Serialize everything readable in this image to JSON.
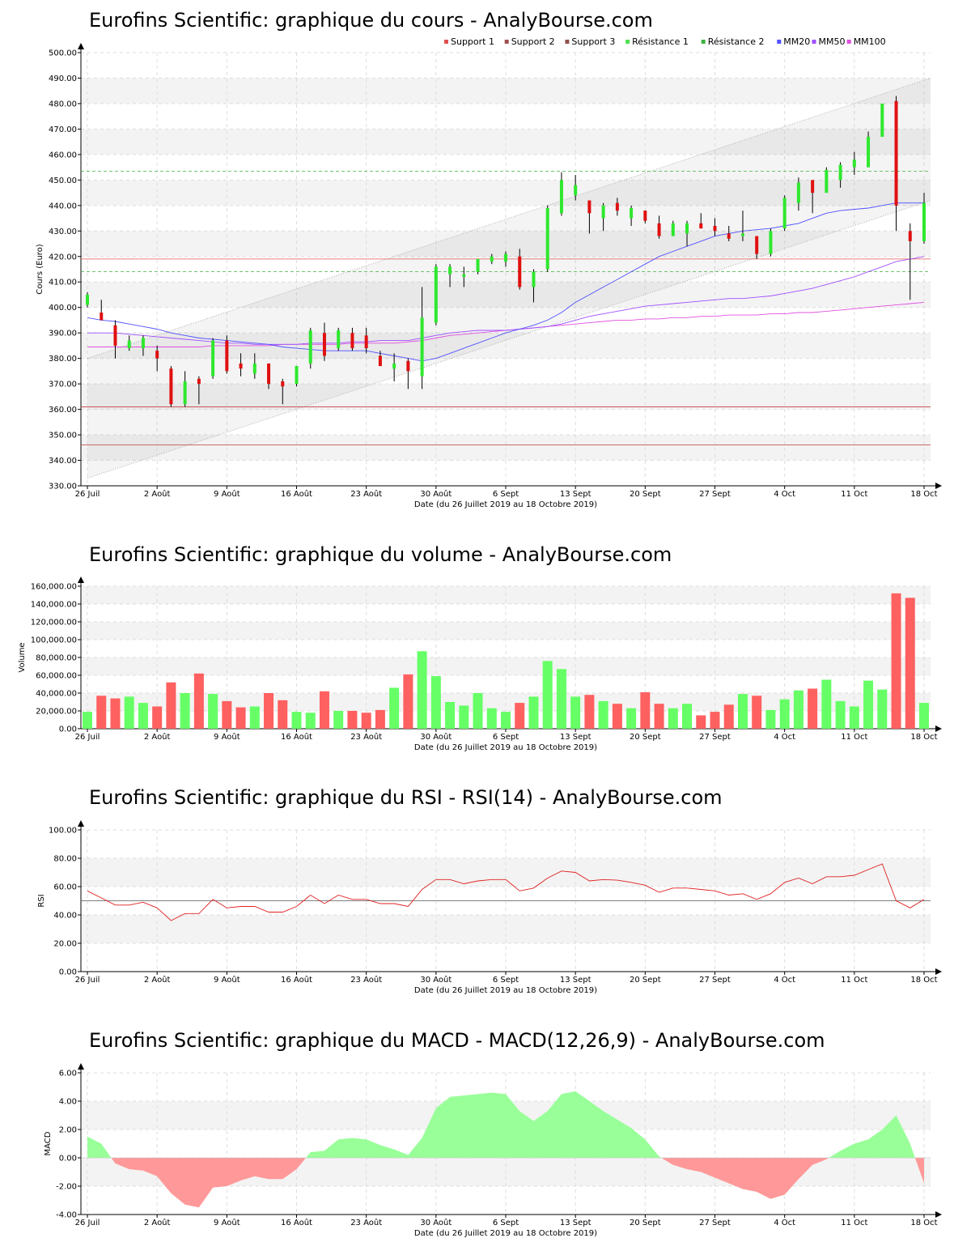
{
  "chart_data": [
    {
      "id": "price",
      "type": "candlestick",
      "title": "Eurofins Scientific: graphique du cours - AnalyBourse.com",
      "xlabel": "Date (du 26 Juillet 2019 au 18 Octobre 2019)",
      "ylabel": "Cours (Euro)",
      "ylim": [
        330,
        500
      ],
      "yticks": [
        "330.00",
        "340.00",
        "350.00",
        "360.00",
        "370.00",
        "380.00",
        "390.00",
        "400.00",
        "410.00",
        "420.00",
        "430.00",
        "440.00",
        "450.00",
        "460.00",
        "470.00",
        "480.00",
        "490.00",
        "500.00"
      ],
      "xtick_labels": [
        "26 Juil",
        "2 Août",
        "9 Août",
        "16 Août",
        "23 Août",
        "30 Août",
        "6 Sept",
        "13 Sept",
        "20 Sept",
        "27 Sept",
        "4 Oct",
        "11 Oct",
        "18 Oct"
      ],
      "xtick_index": [
        0,
        5,
        10,
        15,
        20,
        25,
        30,
        35,
        40,
        45,
        50,
        55,
        60
      ],
      "legend": [
        {
          "name": "Support 1",
          "color": "#e05050"
        },
        {
          "name": "Support 2",
          "color": "#a05050"
        },
        {
          "name": "Support 3",
          "color": "#905050"
        },
        {
          "name": "Résistance 1",
          "color": "#50e050"
        },
        {
          "name": "Résistance 2",
          "color": "#40b040"
        },
        {
          "name": "MM20",
          "color": "#5050ff"
        },
        {
          "name": "MM50",
          "color": "#a050ff"
        },
        {
          "name": "MM100",
          "color": "#e050e0"
        }
      ],
      "levels": {
        "support": [
          419,
          361,
          346
        ],
        "resistance": [
          453.5,
          414
        ]
      },
      "channel": {
        "upper": [
          380,
          490
        ],
        "lower": [
          333,
          442
        ]
      },
      "candles": [
        {
          "o": 401,
          "h": 406,
          "l": 400,
          "c": 405
        },
        {
          "o": 398,
          "h": 403,
          "l": 395,
          "c": 395
        },
        {
          "o": 393,
          "h": 395,
          "l": 380,
          "c": 385
        },
        {
          "o": 384,
          "h": 389,
          "l": 383,
          "c": 387
        },
        {
          "o": 384,
          "h": 389,
          "l": 381,
          "c": 388
        },
        {
          "o": 383,
          "h": 385,
          "l": 375,
          "c": 380
        },
        {
          "o": 376,
          "h": 377,
          "l": 361,
          "c": 362
        },
        {
          "o": 362,
          "h": 375,
          "l": 361,
          "c": 371
        },
        {
          "o": 372,
          "h": 373,
          "l": 362,
          "c": 370
        },
        {
          "o": 373,
          "h": 388,
          "l": 372,
          "c": 387
        },
        {
          "o": 387,
          "h": 389,
          "l": 374,
          "c": 375
        },
        {
          "o": 378,
          "h": 382,
          "l": 373,
          "c": 376
        },
        {
          "o": 374,
          "h": 382,
          "l": 372,
          "c": 378
        },
        {
          "o": 378,
          "h": 378,
          "l": 368,
          "c": 370
        },
        {
          "o": 371,
          "h": 372,
          "l": 362,
          "c": 369
        },
        {
          "o": 370,
          "h": 377,
          "l": 369,
          "c": 377
        },
        {
          "o": 378,
          "h": 392,
          "l": 376,
          "c": 391
        },
        {
          "o": 390,
          "h": 394,
          "l": 379,
          "c": 381
        },
        {
          "o": 384,
          "h": 392,
          "l": 383,
          "c": 391
        },
        {
          "o": 390,
          "h": 392,
          "l": 383,
          "c": 384
        },
        {
          "o": 389,
          "h": 392,
          "l": 382,
          "c": 384
        },
        {
          "o": 381,
          "h": 383,
          "l": 377,
          "c": 377
        },
        {
          "o": 376,
          "h": 382,
          "l": 371,
          "c": 378
        },
        {
          "o": 379,
          "h": 380,
          "l": 368,
          "c": 375
        },
        {
          "o": 373,
          "h": 408,
          "l": 368,
          "c": 396
        },
        {
          "o": 394,
          "h": 417,
          "l": 393,
          "c": 416
        },
        {
          "o": 413,
          "h": 417,
          "l": 408,
          "c": 416
        },
        {
          "o": 412,
          "h": 416,
          "l": 408,
          "c": 413
        },
        {
          "o": 414,
          "h": 419,
          "l": 413,
          "c": 419
        },
        {
          "o": 418,
          "h": 421,
          "l": 417,
          "c": 420
        },
        {
          "o": 418,
          "h": 422,
          "l": 416,
          "c": 421
        },
        {
          "o": 420,
          "h": 423,
          "l": 407,
          "c": 408
        },
        {
          "o": 408,
          "h": 415,
          "l": 402,
          "c": 414
        },
        {
          "o": 415,
          "h": 440,
          "l": 414,
          "c": 439
        },
        {
          "o": 437,
          "h": 453,
          "l": 436,
          "c": 450
        },
        {
          "o": 444,
          "h": 452,
          "l": 442,
          "c": 448
        },
        {
          "o": 442,
          "h": 442,
          "l": 429,
          "c": 437
        },
        {
          "o": 435,
          "h": 441,
          "l": 430,
          "c": 440
        },
        {
          "o": 441,
          "h": 443,
          "l": 436,
          "c": 438
        },
        {
          "o": 435,
          "h": 440,
          "l": 432,
          "c": 439
        },
        {
          "o": 438,
          "h": 438,
          "l": 433,
          "c": 434
        },
        {
          "o": 433,
          "h": 436,
          "l": 427,
          "c": 428
        },
        {
          "o": 428,
          "h": 434,
          "l": 428,
          "c": 433
        },
        {
          "o": 429,
          "h": 434,
          "l": 424,
          "c": 433
        },
        {
          "o": 433,
          "h": 437,
          "l": 431,
          "c": 431
        },
        {
          "o": 432,
          "h": 435,
          "l": 428,
          "c": 430
        },
        {
          "o": 429,
          "h": 432,
          "l": 426,
          "c": 427
        },
        {
          "o": 428,
          "h": 438,
          "l": 426,
          "c": 429
        },
        {
          "o": 428,
          "h": 428,
          "l": 419,
          "c": 421
        },
        {
          "o": 421,
          "h": 431,
          "l": 420,
          "c": 430
        },
        {
          "o": 431,
          "h": 444,
          "l": 430,
          "c": 443
        },
        {
          "o": 441,
          "h": 451,
          "l": 438,
          "c": 449
        },
        {
          "o": 450,
          "h": 450,
          "l": 437,
          "c": 445
        },
        {
          "o": 445,
          "h": 455,
          "l": 445,
          "c": 454
        },
        {
          "o": 450,
          "h": 457,
          "l": 447,
          "c": 456
        },
        {
          "o": 455,
          "h": 461,
          "l": 452,
          "c": 458
        },
        {
          "o": 455,
          "h": 469,
          "l": 455,
          "c": 467
        },
        {
          "o": 467,
          "h": 480,
          "l": 467,
          "c": 480
        },
        {
          "o": 481,
          "h": 483,
          "l": 430,
          "c": 440
        },
        {
          "o": 430,
          "h": 433,
          "l": 403,
          "c": 426
        },
        {
          "o": 426,
          "h": 445,
          "l": 425,
          "c": 441
        }
      ],
      "mm20": [
        396,
        395,
        394.5,
        393.5,
        392.5,
        391.5,
        390,
        389,
        388,
        387.5,
        387,
        386.5,
        386,
        385.5,
        384.5,
        384,
        383.5,
        383,
        383,
        383,
        383,
        382,
        381,
        380,
        379,
        380,
        382,
        384,
        386,
        388,
        390,
        391.5,
        393,
        395,
        398,
        402,
        405,
        408,
        411,
        414,
        417,
        420,
        422,
        424,
        426,
        428,
        429,
        430,
        430.5,
        431,
        432,
        433,
        435,
        437,
        438,
        438.5,
        439,
        440,
        441,
        441,
        441
      ],
      "mm50": [
        390,
        390,
        390,
        389.5,
        389,
        388.5,
        388,
        387.5,
        387,
        386.5,
        386,
        386,
        385.5,
        385.5,
        385.5,
        385.5,
        386,
        386,
        386,
        386.5,
        386.5,
        387,
        387,
        387,
        388,
        389,
        390,
        390.5,
        391,
        391,
        391,
        391.5,
        392,
        392.5,
        393.5,
        395,
        396.5,
        397.5,
        398.5,
        399.5,
        400.5,
        401,
        401.5,
        402,
        402.5,
        403,
        403.5,
        403.5,
        404,
        404.5,
        405.5,
        406.5,
        407.5,
        409,
        410.5,
        412,
        414,
        416,
        418,
        419,
        420
      ],
      "mm100": [
        384.5,
        384.5,
        384.5,
        384.5,
        384.5,
        384.5,
        384.5,
        384.5,
        384.5,
        385,
        385,
        385,
        385,
        385,
        385.5,
        385.5,
        385.5,
        385.5,
        385.5,
        386,
        386,
        386,
        386,
        386.5,
        387,
        388,
        389,
        389.5,
        390,
        390.5,
        391,
        391.5,
        392,
        392.5,
        393,
        393.5,
        394,
        394.5,
        395,
        395,
        395.5,
        395.5,
        396,
        396,
        396.5,
        396.5,
        397,
        397,
        397,
        397.5,
        397.5,
        398,
        398,
        398.5,
        399,
        399.5,
        400,
        400.5,
        401,
        401.5,
        402
      ]
    },
    {
      "id": "volume",
      "type": "bar",
      "title": "Eurofins Scientific: graphique du volume - AnalyBourse.com",
      "xlabel": "Date (du 26 Juillet 2019 au 18 Octobre 2019)",
      "ylabel": "Volume",
      "ylim": [
        0,
        160000
      ],
      "yticks": [
        "0.00",
        "20,000.00",
        "40,000.00",
        "60,000.00",
        "80,000.00",
        "100,000.00",
        "120,000.00",
        "140,000.00",
        "160,000.00"
      ],
      "xtick_labels": [
        "26 Juil",
        "2 Août",
        "9 Août",
        "16 Août",
        "23 Août",
        "30 Août",
        "6 Sept",
        "13 Sept",
        "20 Sept",
        "27 Sept",
        "4 Oct",
        "11 Oct",
        "18 Oct"
      ],
      "xtick_index": [
        0,
        5,
        10,
        15,
        20,
        25,
        30,
        35,
        40,
        45,
        50,
        55,
        60
      ],
      "values": [
        19000,
        37000,
        34000,
        36000,
        29000,
        25000,
        52000,
        40000,
        62000,
        39000,
        31000,
        24000,
        25000,
        40000,
        32000,
        19000,
        18000,
        42000,
        20000,
        20000,
        18000,
        21000,
        46000,
        61000,
        87000,
        59000,
        30000,
        26000,
        40000,
        23000,
        19000,
        29000,
        36000,
        76000,
        67000,
        36000,
        38000,
        31000,
        28000,
        23000,
        41000,
        28000,
        23000,
        28000,
        15000,
        19000,
        27000,
        39000,
        37000,
        21000,
        33000,
        43000,
        45000,
        55000,
        31000,
        25000,
        54000,
        44000,
        152000,
        147000,
        29000
      ],
      "up": [
        1,
        0,
        0,
        1,
        1,
        0,
        0,
        1,
        0,
        1,
        0,
        0,
        1,
        0,
        0,
        1,
        1,
        0,
        1,
        0,
        0,
        0,
        1,
        0,
        1,
        1,
        1,
        1,
        1,
        1,
        1,
        0,
        1,
        1,
        1,
        1,
        0,
        1,
        0,
        1,
        0,
        0,
        1,
        1,
        0,
        0,
        0,
        1,
        0,
        1,
        1,
        1,
        0,
        1,
        1,
        1,
        1,
        1,
        0,
        0,
        1
      ]
    },
    {
      "id": "rsi",
      "type": "line",
      "title": "Eurofins Scientific: graphique du RSI - RSI(14) - AnalyBourse.com",
      "xlabel": "Date (du 26 Juillet 2019 au 18 Octobre 2019)",
      "ylabel": "RSI",
      "ylim": [
        0,
        100
      ],
      "yticks": [
        "0.00",
        "20.00",
        "40.00",
        "60.00",
        "80.00",
        "100.00"
      ],
      "xtick_labels": [
        "26 Juil",
        "2 Août",
        "9 Août",
        "16 Août",
        "23 Août",
        "30 Août",
        "6 Sept",
        "13 Sept",
        "20 Sept",
        "27 Sept",
        "4 Oct",
        "11 Oct",
        "18 Oct"
      ],
      "xtick_index": [
        0,
        5,
        10,
        15,
        20,
        25,
        30,
        35,
        40,
        45,
        50,
        55,
        60
      ],
      "reference": 50,
      "values": [
        57,
        52,
        47,
        47,
        49,
        45,
        36,
        41,
        41,
        51,
        45,
        46,
        46,
        42,
        42,
        46,
        54,
        48,
        54,
        51,
        51,
        48,
        48,
        46,
        58,
        65,
        65,
        62,
        64,
        65,
        65,
        57,
        59,
        66,
        71,
        70,
        64,
        65,
        64.5,
        63,
        61,
        56,
        59,
        59,
        58,
        57,
        54,
        55,
        51,
        55,
        63,
        66,
        62,
        67,
        67,
        68,
        72,
        76,
        50,
        45,
        51
      ]
    },
    {
      "id": "macd",
      "type": "area",
      "title": "Eurofins Scientific: graphique du MACD - MACD(12,26,9) - AnalyBourse.com",
      "xlabel": "Date (du 26 Juillet 2019 au 18 Octobre 2019)",
      "ylabel": "MACD",
      "ylim": [
        -4,
        6
      ],
      "yticks": [
        "-4.00",
        "-2.00",
        "0.00",
        "2.00",
        "4.00",
        "6.00"
      ],
      "xtick_labels": [
        "26 Juil",
        "2 Août",
        "9 Août",
        "16 Août",
        "23 Août",
        "30 Août",
        "6 Sept",
        "13 Sept",
        "20 Sept",
        "27 Sept",
        "4 Oct",
        "11 Oct",
        "18 Oct"
      ],
      "xtick_index": [
        0,
        5,
        10,
        15,
        20,
        25,
        30,
        35,
        40,
        45,
        50,
        55,
        60
      ],
      "values": [
        1.5,
        1.0,
        -0.4,
        -0.8,
        -0.9,
        -1.3,
        -2.5,
        -3.3,
        -3.5,
        -2.1,
        -2.0,
        -1.6,
        -1.3,
        -1.5,
        -1.5,
        -0.8,
        0.4,
        0.5,
        1.3,
        1.4,
        1.3,
        0.9,
        0.6,
        0.2,
        1.4,
        3.5,
        4.3,
        4.4,
        4.5,
        4.6,
        4.5,
        3.3,
        2.6,
        3.3,
        4.5,
        4.7,
        4.0,
        3.3,
        2.7,
        2.1,
        1.3,
        0.1,
        -0.5,
        -0.8,
        -1.0,
        -1.4,
        -1.8,
        -2.2,
        -2.4,
        -2.9,
        -2.6,
        -1.5,
        -0.5,
        -0.1,
        0.5,
        1.0,
        1.3,
        2.0,
        3.0,
        1.0,
        -1.8
      ]
    }
  ]
}
